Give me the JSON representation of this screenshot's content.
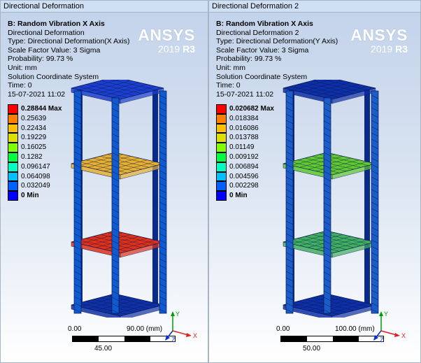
{
  "panes": [
    {
      "title": "Directional Deformation",
      "info": {
        "heading": "B: Random Vibration X Axis",
        "lines": [
          "Directional Deformation",
          "Type: Directional Deformation(X Axis)",
          "Scale Factor Value: 3 Sigma",
          "Probability: 99.73 %",
          "Unit: mm",
          "Solution Coordinate System",
          "Time: 0",
          "15-07-2021 11:02"
        ]
      },
      "logo": {
        "brand": "ANSYS",
        "version": "2019",
        "release": "R3"
      },
      "legend": {
        "max_label": "0.28844 Max",
        "levels": [
          "0.25639",
          "0.22434",
          "0.19229",
          "0.16025",
          "0.1282",
          "0.096147",
          "0.064098",
          "0.032049"
        ],
        "min_label": "0 Min",
        "colors": [
          "#ff0000",
          "#ff8000",
          "#ffc000",
          "#e0e000",
          "#80ff00",
          "#00ff40",
          "#00ffc0",
          "#00c0ff",
          "#0060ff",
          "#0000ff"
        ]
      },
      "model": {
        "shelf_colors": [
          "#1c3fd0",
          "#e8b030",
          "#e03018",
          "#1030a8"
        ],
        "post_color": "#0f5ad0"
      },
      "scale": {
        "start": "0.00",
        "end": "90.00 (mm)",
        "mid": "45.00"
      },
      "axes": {
        "y": "Y",
        "x": "X",
        "z": "Z"
      }
    },
    {
      "title": "Directional Deformation 2",
      "info": {
        "heading": "B: Random Vibration X Axis",
        "lines": [
          "Directional Deformation 2",
          "Type: Directional Deformation(Y Axis)",
          "Scale Factor Value: 3 Sigma",
          "Probability: 99.73 %",
          "Unit: mm",
          "Solution Coordinate System",
          "Time: 0",
          "15-07-2021 11:02"
        ]
      },
      "logo": {
        "brand": "ANSYS",
        "version": "2019",
        "release": "R3"
      },
      "legend": {
        "max_label": "0.020682 Max",
        "levels": [
          "0.018384",
          "0.016086",
          "0.013788",
          "0.01149",
          "0.009192",
          "0.006894",
          "0.004596",
          "0.002298"
        ],
        "min_label": "0 Min",
        "colors": [
          "#ff0000",
          "#ff8000",
          "#ffc000",
          "#e0e000",
          "#80ff00",
          "#00ff40",
          "#00ffc0",
          "#00c0ff",
          "#0060ff",
          "#0000ff"
        ]
      },
      "model": {
        "shelf_colors": [
          "#0d2fa8",
          "#60c830",
          "#40b060",
          "#0d2fa8"
        ],
        "post_color": "#1a5cc8"
      },
      "scale": {
        "start": "0.00",
        "end": "100.00 (mm)",
        "mid": "50.00"
      },
      "axes": {
        "y": "Y",
        "x": "X",
        "z": "Z"
      }
    }
  ]
}
